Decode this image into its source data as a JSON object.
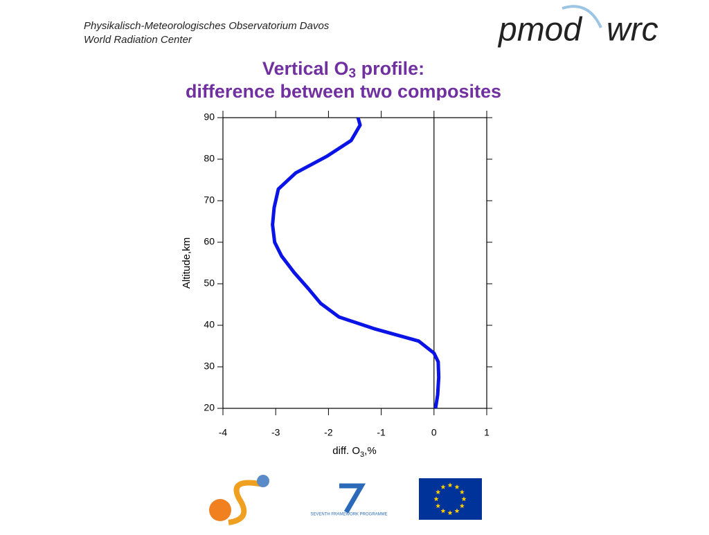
{
  "header": {
    "institute": "Physikalisch-Meteorologisches Observatorium Davos",
    "center": "World Radiation Center",
    "logo_left": "pmod",
    "logo_right": "wrc"
  },
  "footer": {
    "programme": "SEVENTH FRAMEWORK PROGRAMME"
  },
  "chart_data": {
    "type": "line",
    "title_line1": [
      "Vertical  O",
      "3",
      " profile:"
    ],
    "title_line2": "difference between two composites",
    "x_label": [
      "diff. O",
      "3",
      ",%"
    ],
    "y_label": "Altitude,km",
    "x": [
      -1.44,
      -1.4,
      -1.57,
      -2.03,
      -2.62,
      -2.95,
      -3.03,
      -3.06,
      -3.02,
      -2.89,
      -2.65,
      -2.38,
      -2.15,
      -1.8,
      -1.14,
      -0.29,
      0.0,
      0.08,
      0.09,
      0.07,
      0.03
    ],
    "values": [
      90,
      88.2,
      84.5,
      80.7,
      76.7,
      72.8,
      68.3,
      64.2,
      60,
      56.7,
      52.7,
      48.8,
      45.3,
      42,
      39.2,
      36.2,
      33.3,
      31.2,
      27.5,
      23.3,
      20
    ],
    "color": "#0a14e6",
    "xlim": [
      -4,
      1
    ],
    "xticks": [
      -4,
      -3,
      -2,
      -1,
      0,
      1
    ],
    "ylim": [
      20,
      90
    ],
    "yticks": [
      20,
      30,
      40,
      50,
      60,
      70,
      80,
      90
    ],
    "reference_x": 0
  }
}
